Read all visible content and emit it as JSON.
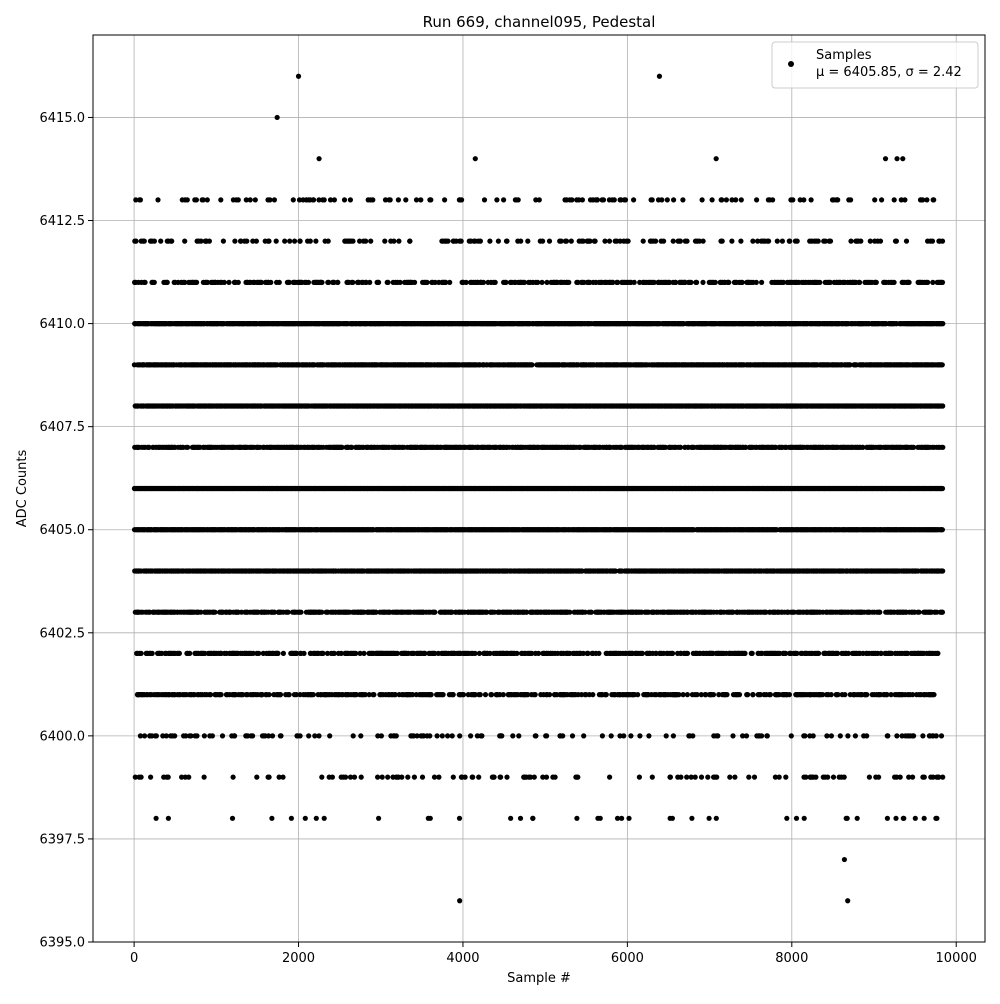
{
  "chart_data": {
    "type": "scatter",
    "title": "Run 669, channel095, Pedestal",
    "xlabel": "Sample #",
    "ylabel": "ADC Counts",
    "xlim": [
      -500,
      10350
    ],
    "ylim": [
      6395.0,
      6417.0
    ],
    "x_ticks": [
      0,
      2000,
      4000,
      6000,
      8000,
      10000
    ],
    "x_tick_labels": [
      "0",
      "2000",
      "4000",
      "6000",
      "8000",
      "10000"
    ],
    "y_ticks": [
      6395.0,
      6397.5,
      6400.0,
      6402.5,
      6405.0,
      6407.5,
      6410.0,
      6412.5,
      6415.0
    ],
    "y_tick_labels": [
      "6395.0",
      "6397.5",
      "6400.0",
      "6402.5",
      "6405.0",
      "6407.5",
      "6410.0",
      "6412.5",
      "6415.0"
    ],
    "grid": true,
    "legend_position": "top-right",
    "marker_color": "#000000",
    "series": [
      {
        "name": "Samples",
        "label_line2": "μ = 6405.85, σ = 2.42",
        "x_range": [
          0,
          9840
        ],
        "levels": [
          {
            "y": 6410,
            "density": 0.85
          },
          {
            "y": 6409,
            "density": 0.8
          },
          {
            "y": 6408,
            "density": 0.9
          },
          {
            "y": 6407,
            "density": 0.6
          },
          {
            "y": 6406,
            "density": 1.0
          },
          {
            "y": 6405,
            "density": 0.95
          },
          {
            "y": 6404,
            "density": 0.75
          },
          {
            "y": 6403,
            "density": 0.55
          },
          {
            "y": 6402,
            "density": 0.4
          },
          {
            "y": 6401,
            "density": 0.35
          },
          {
            "y": 6411,
            "density": 0.3
          },
          {
            "y": 6412,
            "density": 0.15
          },
          {
            "y": 6413,
            "density": 0.1
          },
          {
            "y": 6400,
            "density": 0.12
          },
          {
            "y": 6399,
            "density": 0.08
          },
          {
            "y": 6398,
            "density": 0.02
          }
        ],
        "outliers": [
          {
            "x": 1740,
            "y": 6415
          },
          {
            "x": 2000,
            "y": 6416
          },
          {
            "x": 6390,
            "y": 6416
          },
          {
            "x": 2250,
            "y": 6414
          },
          {
            "x": 4150,
            "y": 6414
          },
          {
            "x": 7080,
            "y": 6414
          },
          {
            "x": 9140,
            "y": 6414
          },
          {
            "x": 9280,
            "y": 6414
          },
          {
            "x": 9350,
            "y": 6414
          },
          {
            "x": 8640,
            "y": 6397
          },
          {
            "x": 3960,
            "y": 6396
          },
          {
            "x": 8680,
            "y": 6396
          },
          {
            "x": 4580,
            "y": 6398
          },
          {
            "x": 4700,
            "y": 6398
          },
          {
            "x": 4850,
            "y": 6398
          },
          {
            "x": 5670,
            "y": 6398
          },
          {
            "x": 5880,
            "y": 6398
          },
          {
            "x": 5930,
            "y": 6398
          },
          {
            "x": 6020,
            "y": 6398
          },
          {
            "x": 9610,
            "y": 6398
          }
        ]
      }
    ]
  }
}
